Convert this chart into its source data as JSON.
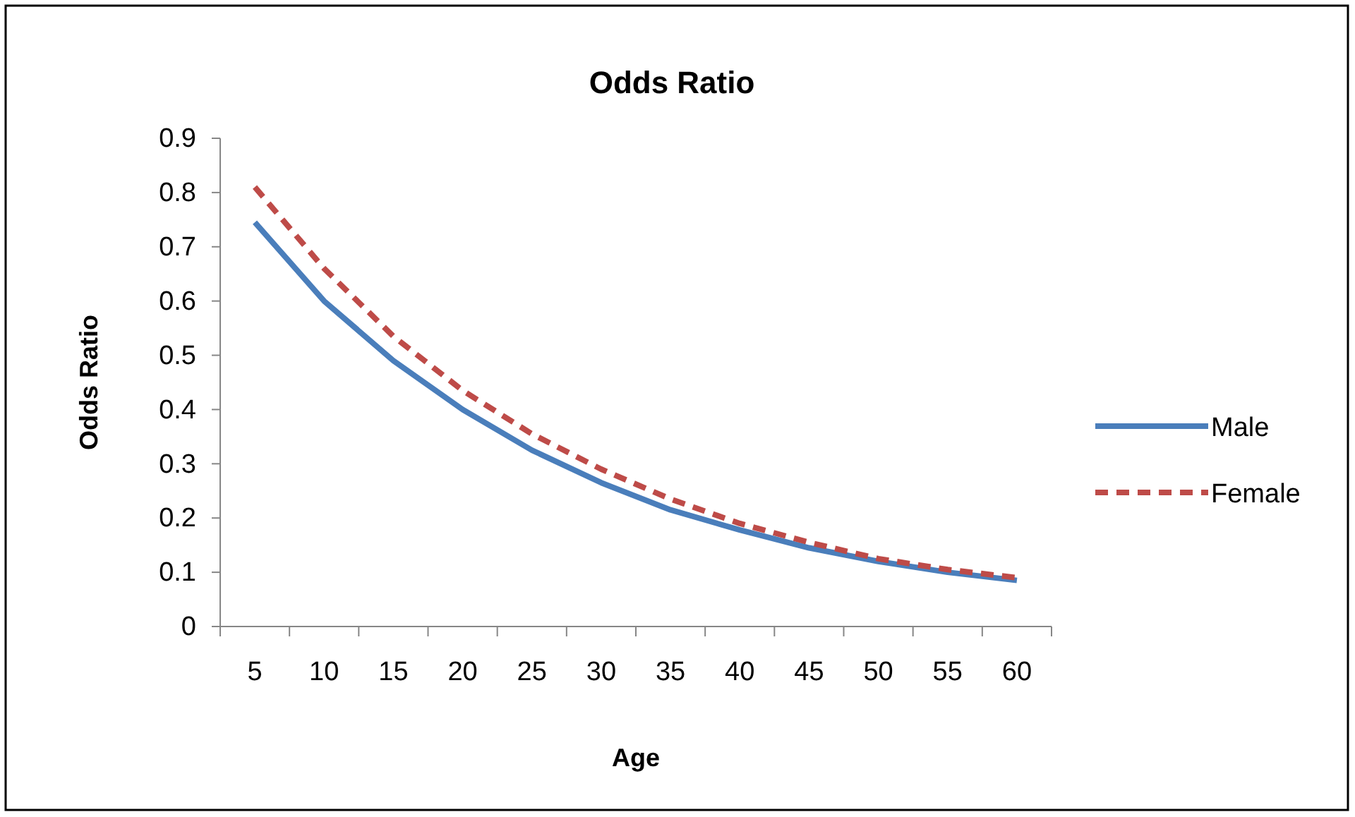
{
  "chart_data": {
    "type": "line",
    "title": "Odds Ratio",
    "xlabel": "Age",
    "ylabel": "Odds Ratio",
    "categories": [
      "5",
      "10",
      "15",
      "20",
      "25",
      "30",
      "35",
      "40",
      "45",
      "50",
      "55",
      "60"
    ],
    "ylim": [
      0,
      0.9
    ],
    "yticks": [
      {
        "value": 0,
        "label": "0"
      },
      0.1,
      0.2,
      0.3,
      0.4,
      0.5,
      0.6,
      0.7,
      0.8,
      0.9
    ],
    "grid": false,
    "legend": "right",
    "marker": "none",
    "series": [
      {
        "name": "Male",
        "color": "#4a7ebb",
        "line_style": "solid",
        "values": [
          0.745,
          0.6,
          0.49,
          0.4,
          0.325,
          0.265,
          0.215,
          0.178,
          0.145,
          0.12,
          0.1,
          0.085
        ]
      },
      {
        "name": "Female",
        "color": "#be4b48",
        "line_style": "dashed",
        "values": [
          0.81,
          0.66,
          0.535,
          0.435,
          0.355,
          0.29,
          0.235,
          0.19,
          0.155,
          0.125,
          0.105,
          0.09
        ]
      }
    ]
  }
}
